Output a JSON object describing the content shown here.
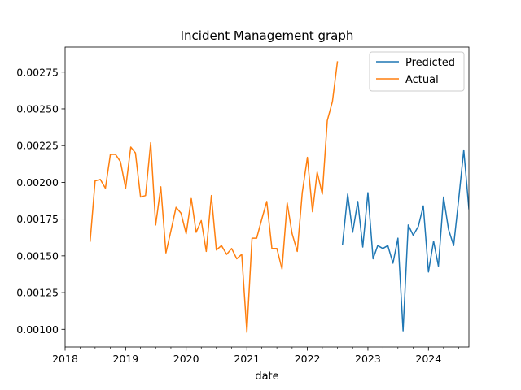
{
  "chart_data": {
    "type": "line",
    "title": "Incident Management graph",
    "xlabel": "date",
    "ylabel": "",
    "x_type": "date",
    "xlim": [
      "2018-01-01",
      "2024-09-01"
    ],
    "ylim": [
      0.00088,
      0.00292
    ],
    "x_ticks": [
      "2018-01-01",
      "2019-01-01",
      "2020-01-01",
      "2021-01-01",
      "2022-01-01",
      "2023-01-01",
      "2024-01-01"
    ],
    "x_tick_labels": [
      "2018",
      "2019",
      "2020",
      "2021",
      "2022",
      "2023",
      "2024"
    ],
    "y_ticks": [
      0.001,
      0.00125,
      0.0015,
      0.00175,
      0.002,
      0.00225,
      0.0025,
      0.00275
    ],
    "y_tick_labels": [
      "0.00100",
      "0.00125",
      "0.00150",
      "0.00175",
      "0.00200",
      "0.00225",
      "0.00250",
      "0.00275"
    ],
    "grid": false,
    "legend_position": "top-right",
    "series": [
      {
        "name": "Predicted",
        "color": "#1f77b4",
        "x": [
          "2022-08-01",
          "2022-09-01",
          "2022-10-01",
          "2022-11-01",
          "2022-12-01",
          "2023-01-01",
          "2023-02-01",
          "2023-03-01",
          "2023-04-01",
          "2023-05-01",
          "2023-06-01",
          "2023-07-01",
          "2023-08-01",
          "2023-09-01",
          "2023-10-01",
          "2023-11-01",
          "2023-12-01",
          "2024-01-01",
          "2024-02-01",
          "2024-03-01",
          "2024-04-01",
          "2024-05-01",
          "2024-06-01",
          "2024-07-01",
          "2024-08-01",
          "2024-09-01"
        ],
        "y": [
          0.00158,
          0.00192,
          0.00166,
          0.00187,
          0.00156,
          0.00193,
          0.00148,
          0.00157,
          0.00155,
          0.00157,
          0.00145,
          0.00162,
          0.00099,
          0.00171,
          0.00164,
          0.0017,
          0.00184,
          0.00139,
          0.0016,
          0.00143,
          0.0019,
          0.00168,
          0.00157,
          0.00188,
          0.00222,
          0.00182
        ]
      },
      {
        "name": "Actual",
        "color": "#ff7f0e",
        "x": [
          "2018-06-01",
          "2018-07-01",
          "2018-08-01",
          "2018-09-01",
          "2018-10-01",
          "2018-11-01",
          "2018-12-01",
          "2019-01-01",
          "2019-02-01",
          "2019-03-01",
          "2019-04-01",
          "2019-05-01",
          "2019-06-01",
          "2019-07-01",
          "2019-08-01",
          "2019-09-01",
          "2019-10-01",
          "2019-11-01",
          "2019-12-01",
          "2020-01-01",
          "2020-02-01",
          "2020-03-01",
          "2020-04-01",
          "2020-05-01",
          "2020-06-01",
          "2020-07-01",
          "2020-08-01",
          "2020-09-01",
          "2020-10-01",
          "2020-11-01",
          "2020-12-01",
          "2021-01-01",
          "2021-02-01",
          "2021-03-01",
          "2021-04-01",
          "2021-05-01",
          "2021-06-01",
          "2021-07-01",
          "2021-08-01",
          "2021-09-01",
          "2021-10-01",
          "2021-11-01",
          "2021-12-01",
          "2022-01-01",
          "2022-02-01",
          "2022-03-01",
          "2022-04-01",
          "2022-05-01",
          "2022-06-01",
          "2022-07-01"
        ],
        "y": [
          0.0016,
          0.00201,
          0.00202,
          0.00196,
          0.00219,
          0.00219,
          0.00214,
          0.00196,
          0.00224,
          0.0022,
          0.0019,
          0.00191,
          0.00227,
          0.00171,
          0.00197,
          0.00152,
          0.00167,
          0.00183,
          0.00179,
          0.00165,
          0.00189,
          0.00166,
          0.00174,
          0.00153,
          0.00191,
          0.00154,
          0.00157,
          0.00151,
          0.00155,
          0.00148,
          0.00151,
          0.00098,
          0.00162,
          0.00162,
          0.00175,
          0.00187,
          0.00155,
          0.00155,
          0.00141,
          0.00186,
          0.00165,
          0.00153,
          0.00193,
          0.00217,
          0.0018,
          0.00207,
          0.00192,
          0.00242,
          0.00255,
          0.00282
        ]
      }
    ]
  }
}
